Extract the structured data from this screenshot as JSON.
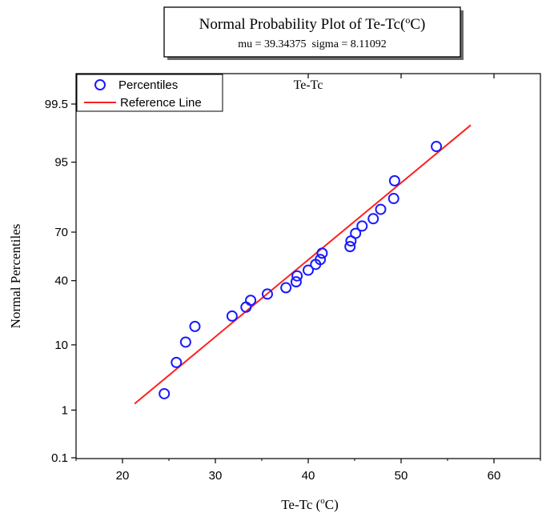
{
  "chart_data": {
    "type": "scatter",
    "title": "Normal Probability Plot of Te-Tc(",
    "title_sup": "o",
    "title_unit": "C)",
    "subtitle": "mu = 39.34375  sigma = 8.11092",
    "inner_label": "Te-Tc",
    "xlabel": "Te-Tc (",
    "xlabel_sup": "o",
    "xlabel_unit": "C)",
    "ylabel": "Normal Percentiles",
    "x_axis": {
      "range": [
        15,
        65
      ],
      "ticks": [
        20,
        30,
        40,
        50,
        60
      ]
    },
    "y_axis": {
      "scale": "normal-probability",
      "range_percent": [
        0.1,
        99.9
      ],
      "ticks": [
        0.1,
        1,
        10,
        40,
        70,
        95,
        99.5
      ],
      "tick_labels": [
        "0.1",
        "1",
        "10",
        "40",
        "70",
        "95",
        "99.5"
      ]
    },
    "legend": {
      "placement": "top-left",
      "entries": [
        {
          "label": "Percentiles",
          "marker": "circle",
          "color": "#1a1aff"
        },
        {
          "label": "Reference Line",
          "marker": "line",
          "color": "#ff2020"
        }
      ]
    },
    "series": [
      {
        "name": "Percentiles",
        "color": "#1a1aff",
        "points": [
          {
            "x": 24.5,
            "y": 1.95
          },
          {
            "x": 25.8,
            "y": 5.9
          },
          {
            "x": 26.8,
            "y": 10.8
          },
          {
            "x": 27.8,
            "y": 16.2
          },
          {
            "x": 31.8,
            "y": 20.6
          },
          {
            "x": 33.3,
            "y": 24.9
          },
          {
            "x": 33.8,
            "y": 28.5
          },
          {
            "x": 35.6,
            "y": 32.0
          },
          {
            "x": 37.6,
            "y": 35.7
          },
          {
            "x": 38.7,
            "y": 39.3
          },
          {
            "x": 38.8,
            "y": 43.0
          },
          {
            "x": 40.0,
            "y": 46.6
          },
          {
            "x": 40.8,
            "y": 50.3
          },
          {
            "x": 41.3,
            "y": 53.4
          },
          {
            "x": 41.5,
            "y": 57.4
          },
          {
            "x": 44.5,
            "y": 61.5
          },
          {
            "x": 44.6,
            "y": 64.9
          },
          {
            "x": 45.1,
            "y": 69.3
          },
          {
            "x": 45.8,
            "y": 73.3
          },
          {
            "x": 47.0,
            "y": 77.0
          },
          {
            "x": 47.8,
            "y": 81.3
          },
          {
            "x": 49.2,
            "y": 85.6
          },
          {
            "x": 49.3,
            "y": 91.1
          },
          {
            "x": 53.8,
            "y": 97.1
          }
        ]
      },
      {
        "name": "Reference Line",
        "color": "#ff2020",
        "mu": 39.34375,
        "sigma": 8.11092,
        "x_range": [
          21.3,
          57.5
        ]
      }
    ],
    "grid": false
  }
}
